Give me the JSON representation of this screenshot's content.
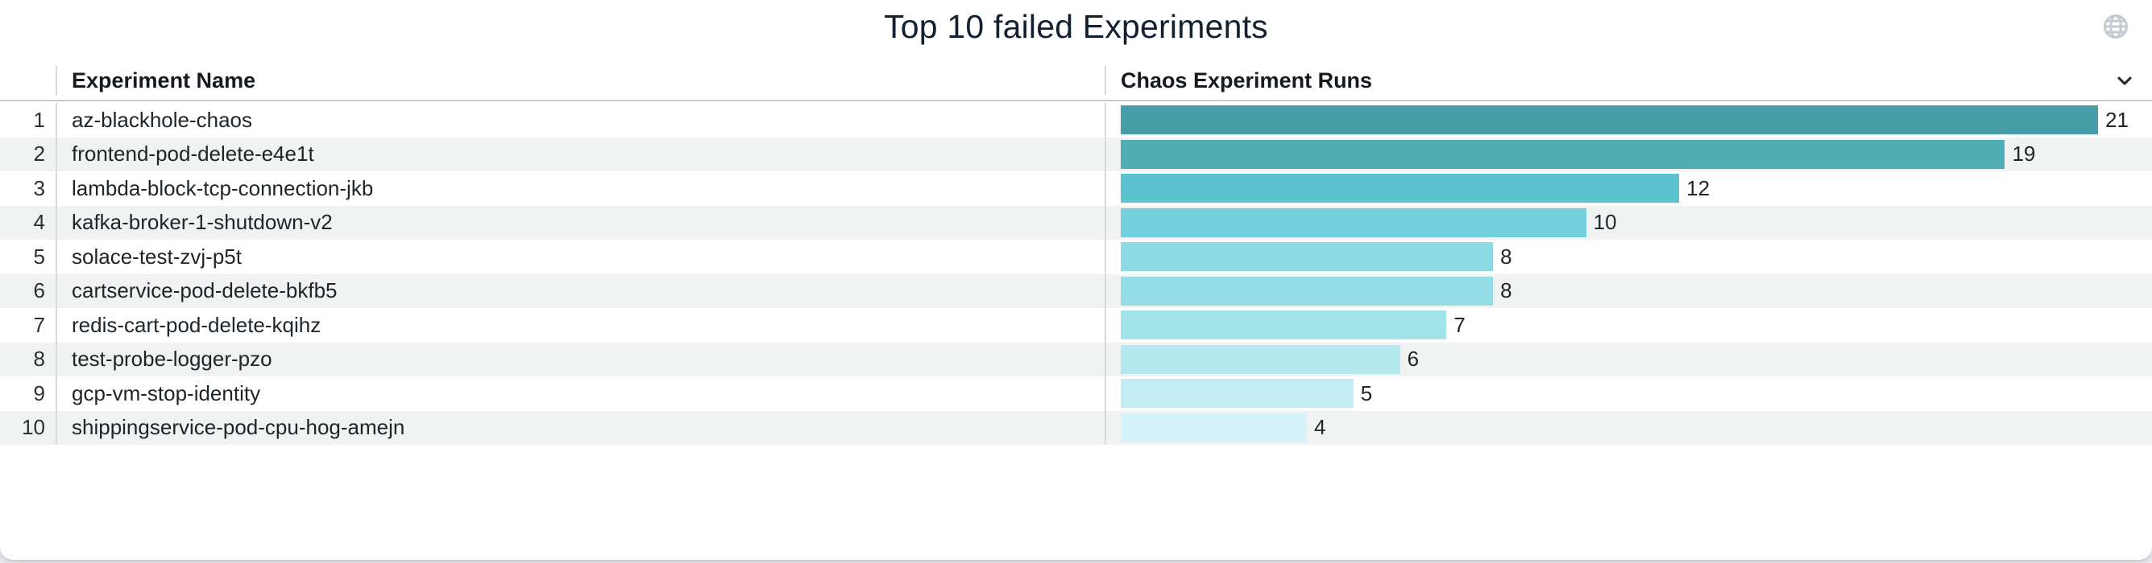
{
  "panel": {
    "title": "Top 10 failed Experiments"
  },
  "icons": {
    "globe": "globe-icon",
    "column_menu": "chevron-down-icon"
  },
  "table": {
    "columns": [
      {
        "label": "Experiment Name"
      },
      {
        "label": "Chaos Experiment Runs"
      }
    ],
    "ranks": [
      "1",
      "2",
      "3",
      "4",
      "5",
      "6",
      "7",
      "8",
      "9",
      "10"
    ]
  },
  "chart_data": {
    "type": "bar",
    "orientation": "horizontal",
    "title": "Top 10 failed Experiments",
    "categories": [
      "az-blackhole-chaos",
      "frontend-pod-delete-e4e1t",
      "lambda-block-tcp-connection-jkb",
      "kafka-broker-1-shutdown-v2",
      "solace-test-zvj-p5t",
      "cartservice-pod-delete-bkfb5",
      "redis-cart-pod-delete-kqihz",
      "test-probe-logger-pzo",
      "gcp-vm-stop-identity",
      "shippingservice-pod-cpu-hog-amejn"
    ],
    "values": [
      21,
      19,
      12,
      10,
      8,
      8,
      7,
      6,
      5,
      4
    ],
    "value_labels": [
      "21",
      "19",
      "12",
      "10",
      "8",
      "8",
      "7",
      "6",
      "5",
      "4"
    ],
    "xlabel": "Chaos Experiment Runs",
    "ylabel": "Experiment Name",
    "xlim": [
      0,
      21
    ],
    "grid": false,
    "legend": false,
    "bar_colors": [
      "#479EA8",
      "#50ACB5",
      "#5CC4D0",
      "#73D0DC",
      "#8CDAE4",
      "#94DEE7",
      "#A4E4EB",
      "#B4E9F0",
      "#C4EEF4",
      "#D5F3F8"
    ]
  },
  "colors": {
    "title_text": "#132030",
    "header_text": "#16191E",
    "body_text": "#1F2428",
    "row_alt_bg": "#F1F2F2",
    "column_divider": "#D8DADB",
    "header_underline": "#C7CACB",
    "globe_icon": "#C5CAD2",
    "chevron_icon": "#23292F"
  }
}
